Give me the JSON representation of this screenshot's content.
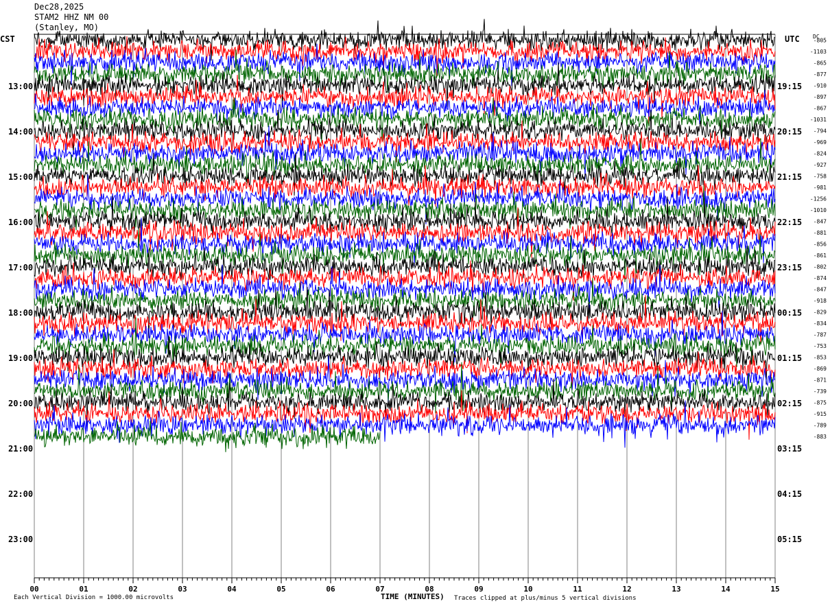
{
  "header": {
    "date": "Dec28,2025",
    "station": "STAM2 HHZ NM 00",
    "location": "(Stanley, MO)"
  },
  "left_axis_label": "CST",
  "right_axis_label": "UTC",
  "dc_label": "DC",
  "footer": {
    "division_note": "Each Vertical Division = 1000.00 microvolts",
    "xlabel": "TIME (MINUTES)",
    "clip_note": "Traces clipped at plus/minus 5 vertical divisions"
  },
  "colors": {
    "trace_cycle": [
      "#000000",
      "#ff0000",
      "#0000ff",
      "#006400"
    ],
    "grid": "#808080"
  },
  "chart_data": {
    "type": "line",
    "title": "STAM2 HHZ NM 00",
    "xlabel": "TIME (MINUTES)",
    "xlim": [
      0,
      15
    ],
    "x_ticks": [
      "00",
      "01",
      "02",
      "03",
      "04",
      "05",
      "06",
      "07",
      "08",
      "09",
      "10",
      "11",
      "12",
      "13",
      "14",
      "15"
    ],
    "left_hour_labels": [
      "13:00",
      "14:00",
      "15:00",
      "16:00",
      "17:00",
      "18:00",
      "19:00",
      "20:00",
      "21:00",
      "22:00",
      "23:00"
    ],
    "right_hour_labels": [
      "19:15",
      "20:15",
      "21:15",
      "22:15",
      "23:15",
      "00:15",
      "01:15",
      "02:15",
      "03:15",
      "04:15",
      "05:15"
    ],
    "dc_offsets": [
      "-805",
      "-1103",
      "-865",
      "-877",
      "-910",
      "-897",
      "-867",
      "-1031",
      "-794",
      "-969",
      "-824",
      "-927",
      "-758",
      "-981",
      "-1256",
      "-1010",
      "-847",
      "-881",
      "-856",
      "-861",
      "-802",
      "-874",
      "-847",
      "-918",
      "-829",
      "-834",
      "-787",
      "-753",
      "-853",
      "-869",
      "-871",
      "-739",
      "-875",
      "-915",
      "-789",
      "-883"
    ],
    "trace_count": 36,
    "last_trace_minutes": 7.0,
    "clip_divisions": 5,
    "grid": true
  }
}
